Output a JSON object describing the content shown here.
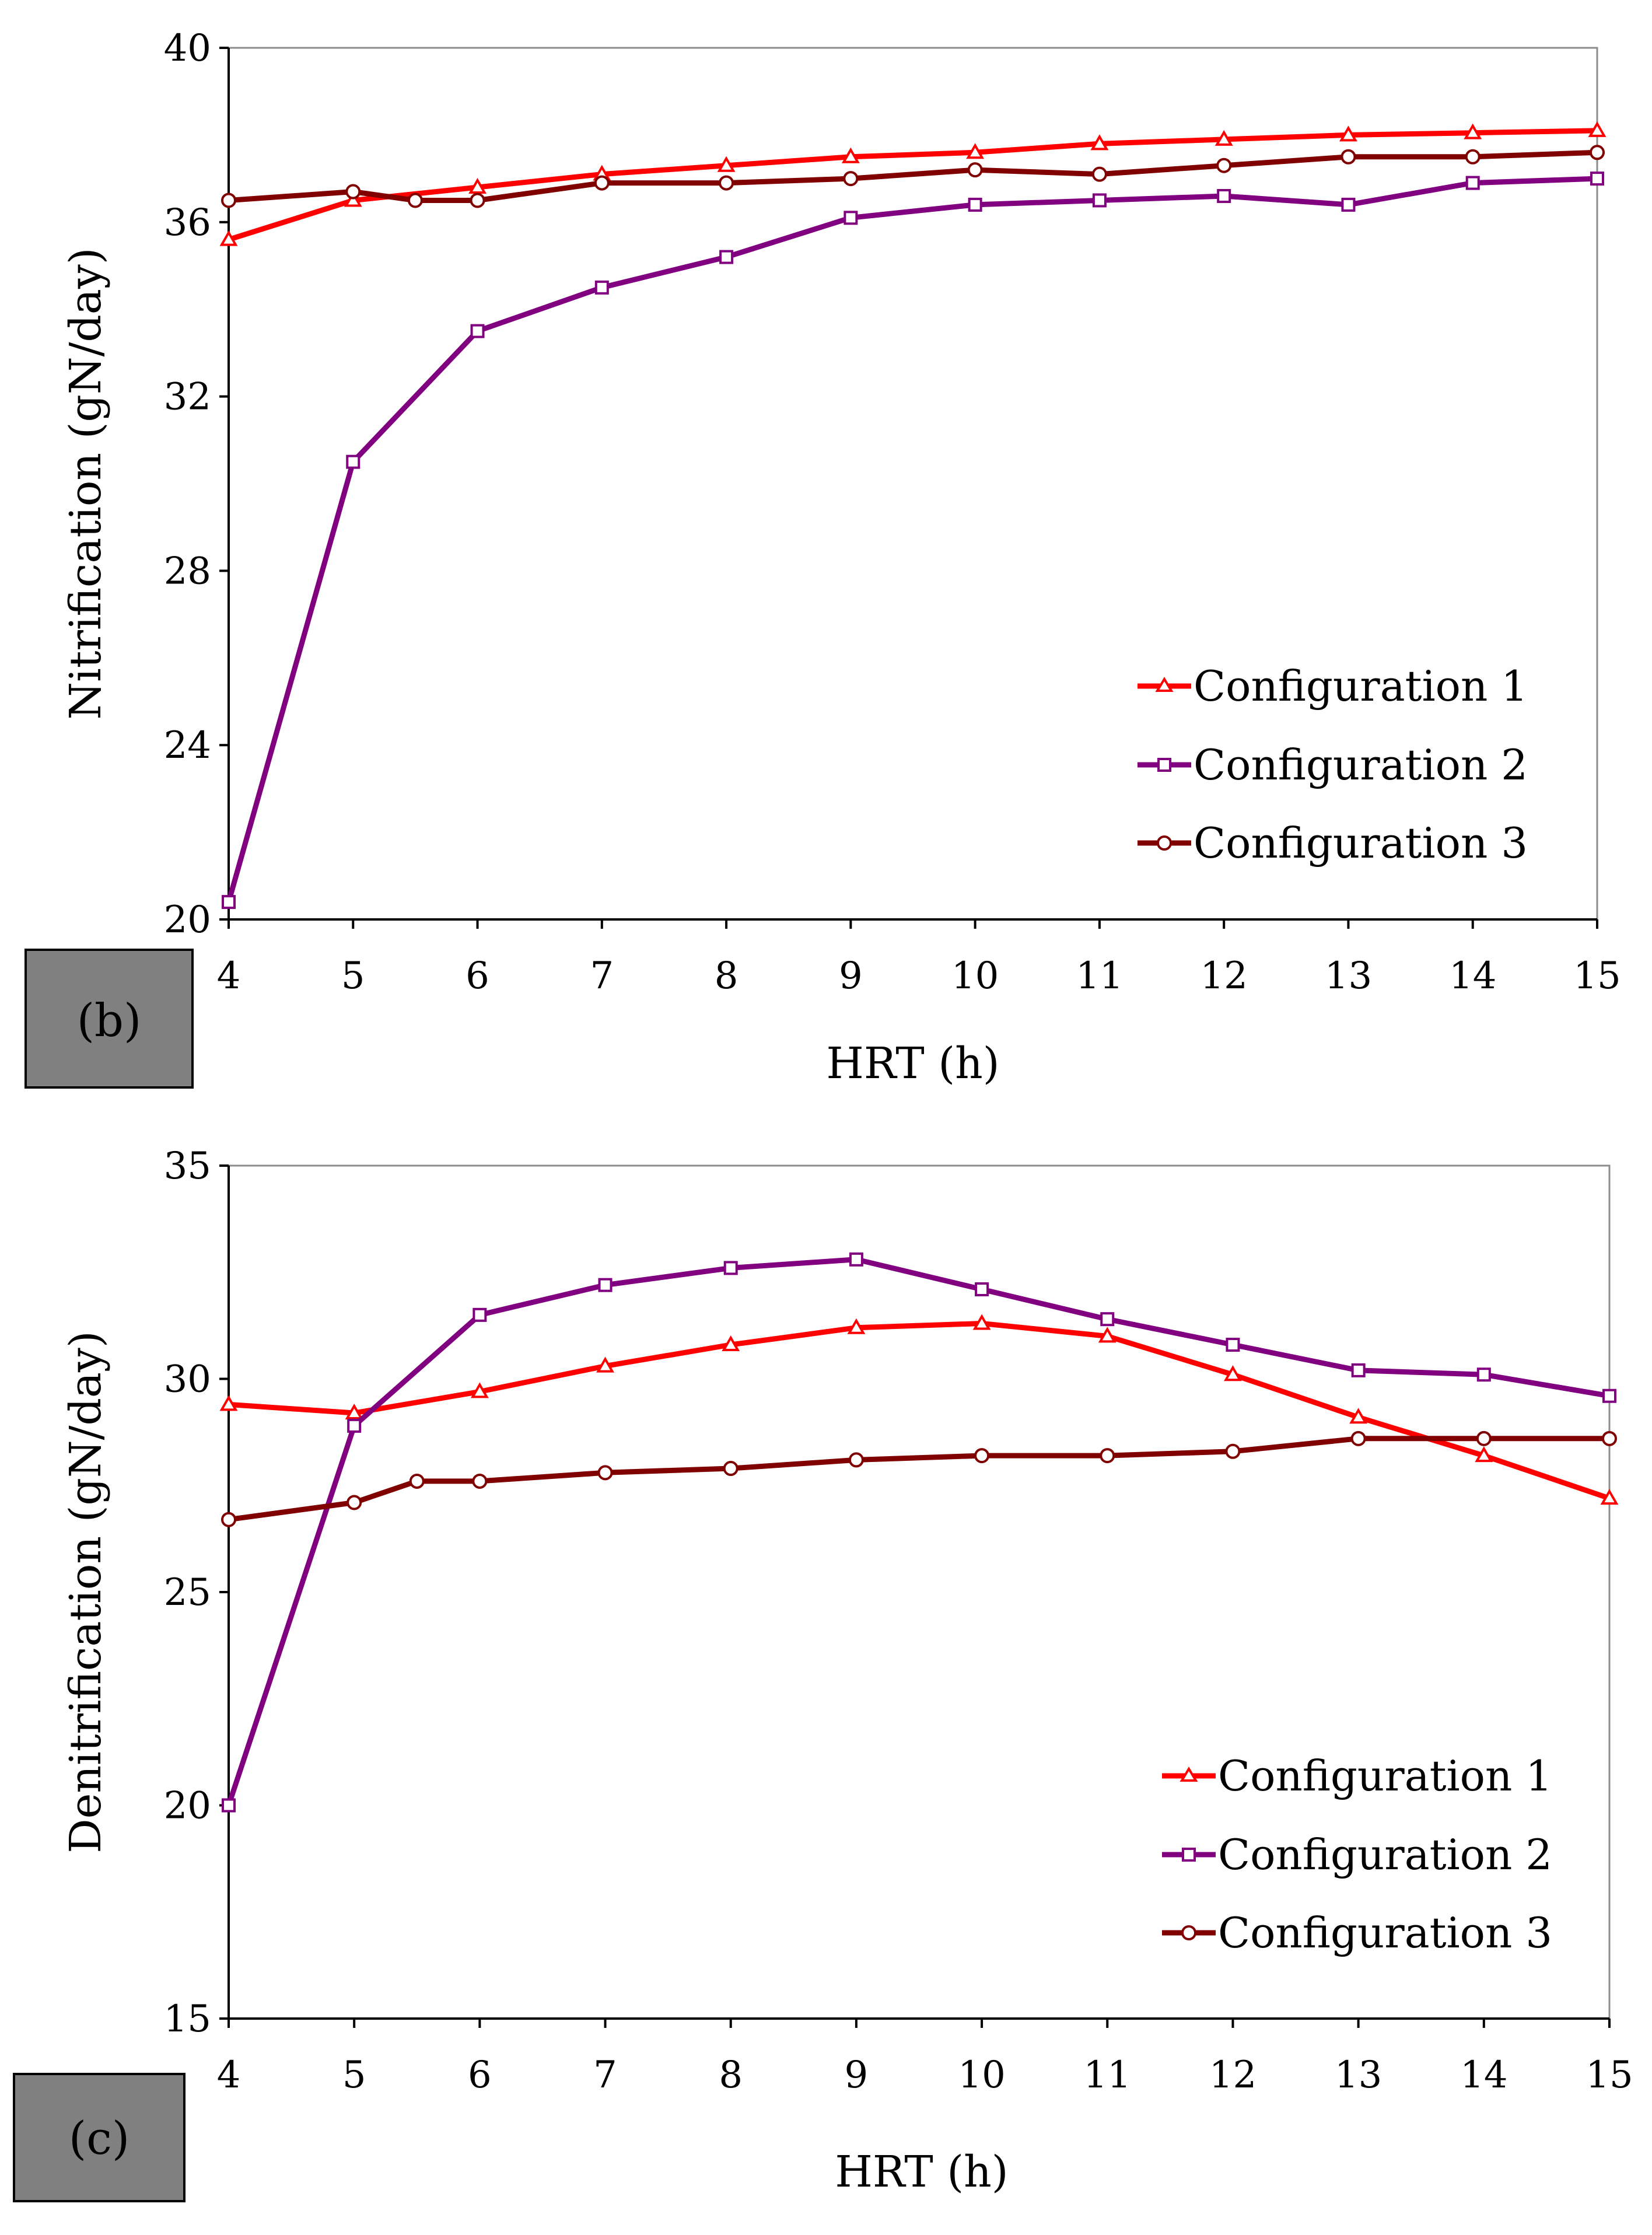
{
  "chart_data": [
    {
      "type": "line",
      "panel_label": "(b)",
      "xlabel": "HRT (h)",
      "ylabel": "Nitrification (gN/day)",
      "xlim": [
        4,
        15
      ],
      "ylim": [
        20,
        40
      ],
      "xticks": [
        4,
        5,
        6,
        7,
        8,
        9,
        10,
        11,
        12,
        13,
        14,
        15
      ],
      "yticks": [
        20,
        24,
        28,
        32,
        36,
        40
      ],
      "legend_position": "bottom-right",
      "series": [
        {
          "name": "Configuration 1",
          "color": "#ff0000",
          "marker": "triangle",
          "x": [
            4,
            5,
            6,
            7,
            8,
            9,
            10,
            11,
            12,
            13,
            14,
            15
          ],
          "y": [
            35.6,
            36.5,
            36.8,
            37.1,
            37.3,
            37.5,
            37.6,
            37.8,
            37.9,
            38.0,
            38.05,
            38.1
          ]
        },
        {
          "name": "Configuration 2",
          "color": "#800080",
          "marker": "square",
          "x": [
            4,
            5,
            6,
            7,
            8,
            9,
            10,
            11,
            12,
            13,
            14,
            15
          ],
          "y": [
            20.4,
            30.5,
            33.5,
            34.5,
            35.2,
            36.1,
            36.4,
            36.5,
            36.6,
            36.4,
            36.9,
            37.0
          ]
        },
        {
          "name": "Configuration 3",
          "color": "#800000",
          "marker": "circle",
          "x": [
            4,
            5,
            5.5,
            6,
            7,
            8,
            9,
            10,
            11,
            12,
            13,
            14,
            15
          ],
          "y": [
            36.5,
            36.7,
            36.5,
            36.5,
            36.9,
            36.9,
            37.0,
            37.2,
            37.1,
            37.3,
            37.5,
            37.5,
            37.6
          ]
        }
      ]
    },
    {
      "type": "line",
      "panel_label": "(c)",
      "xlabel": "HRT (h)",
      "ylabel": "Denitrification (gN/day)",
      "xlim": [
        4,
        15
      ],
      "ylim": [
        15,
        35
      ],
      "xticks": [
        4,
        5,
        6,
        7,
        8,
        9,
        10,
        11,
        12,
        13,
        14,
        15
      ],
      "yticks": [
        15,
        20,
        25,
        30,
        35
      ],
      "legend_position": "bottom-right",
      "series": [
        {
          "name": "Configuration 1",
          "color": "#ff0000",
          "marker": "triangle",
          "x": [
            4,
            5,
            6,
            7,
            8,
            9,
            10,
            11,
            12,
            13,
            14,
            15
          ],
          "y": [
            29.4,
            29.2,
            29.7,
            30.3,
            30.8,
            31.2,
            31.3,
            31.0,
            30.1,
            29.1,
            28.2,
            27.2
          ]
        },
        {
          "name": "Configuration 2",
          "color": "#800080",
          "marker": "square",
          "x": [
            4,
            5,
            6,
            7,
            8,
            9,
            10,
            11,
            12,
            13,
            14,
            15
          ],
          "y": [
            20.0,
            28.9,
            31.5,
            32.2,
            32.6,
            32.8,
            32.1,
            31.4,
            30.8,
            30.2,
            30.1,
            29.6
          ]
        },
        {
          "name": "Configuration 3",
          "color": "#800000",
          "marker": "circle",
          "x": [
            4,
            5,
            5.5,
            6,
            7,
            8,
            9,
            10,
            11,
            12,
            13,
            14,
            15
          ],
          "y": [
            26.7,
            27.1,
            27.6,
            27.6,
            27.8,
            27.9,
            28.1,
            28.2,
            28.2,
            28.3,
            28.6,
            28.6,
            28.6
          ]
        }
      ]
    }
  ]
}
